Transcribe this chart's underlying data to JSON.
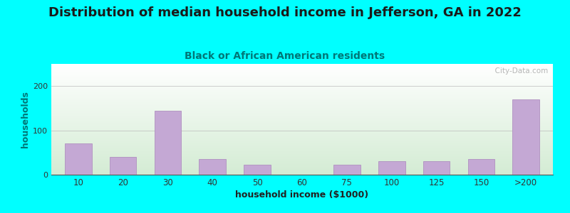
{
  "title": "Distribution of median household income in Jefferson, GA in 2022",
  "subtitle": "Black or African American residents",
  "xlabel": "household income ($1000)",
  "ylabel": "households",
  "background_color": "#00FFFF",
  "plot_bg_top": "#FFFFFF",
  "plot_bg_bottom": "#D4ECD4",
  "bar_color": "#C4A8D4",
  "bar_edge_color": "#B090C0",
  "categories": [
    "10",
    "20",
    "30",
    "40",
    "50",
    "60",
    "75",
    "100",
    "125",
    "150",
    ">200"
  ],
  "values": [
    70,
    40,
    145,
    35,
    22,
    0,
    22,
    30,
    30,
    35,
    170
  ],
  "ylim": [
    0,
    250
  ],
  "yticks": [
    0,
    100,
    200
  ],
  "watermark": "  City-Data.com",
  "title_fontsize": 13,
  "subtitle_fontsize": 10,
  "axis_label_fontsize": 9
}
